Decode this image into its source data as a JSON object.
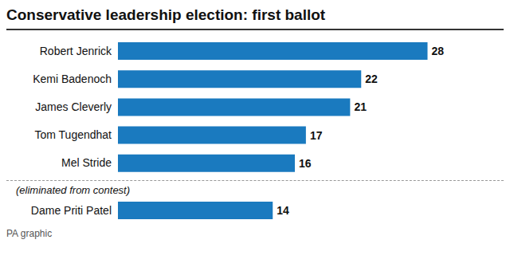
{
  "chart_data": {
    "type": "bar",
    "orientation": "horizontal",
    "title": "Conservative leadership election: first ballot",
    "categories": [
      "Robert Jenrick",
      "Kemi Badenoch",
      "James Cleverly",
      "Tom Tugendhat",
      "Mel Stride",
      "Dame Priti Patel"
    ],
    "values": [
      28,
      22,
      21,
      17,
      16,
      14
    ],
    "color": "#1a7abf",
    "xlim": [
      0,
      32
    ],
    "data_labels": true,
    "tick_labels": "y",
    "grid": false,
    "annotations": [
      "(eliminated from contest)",
      "PA graphic"
    ]
  }
}
